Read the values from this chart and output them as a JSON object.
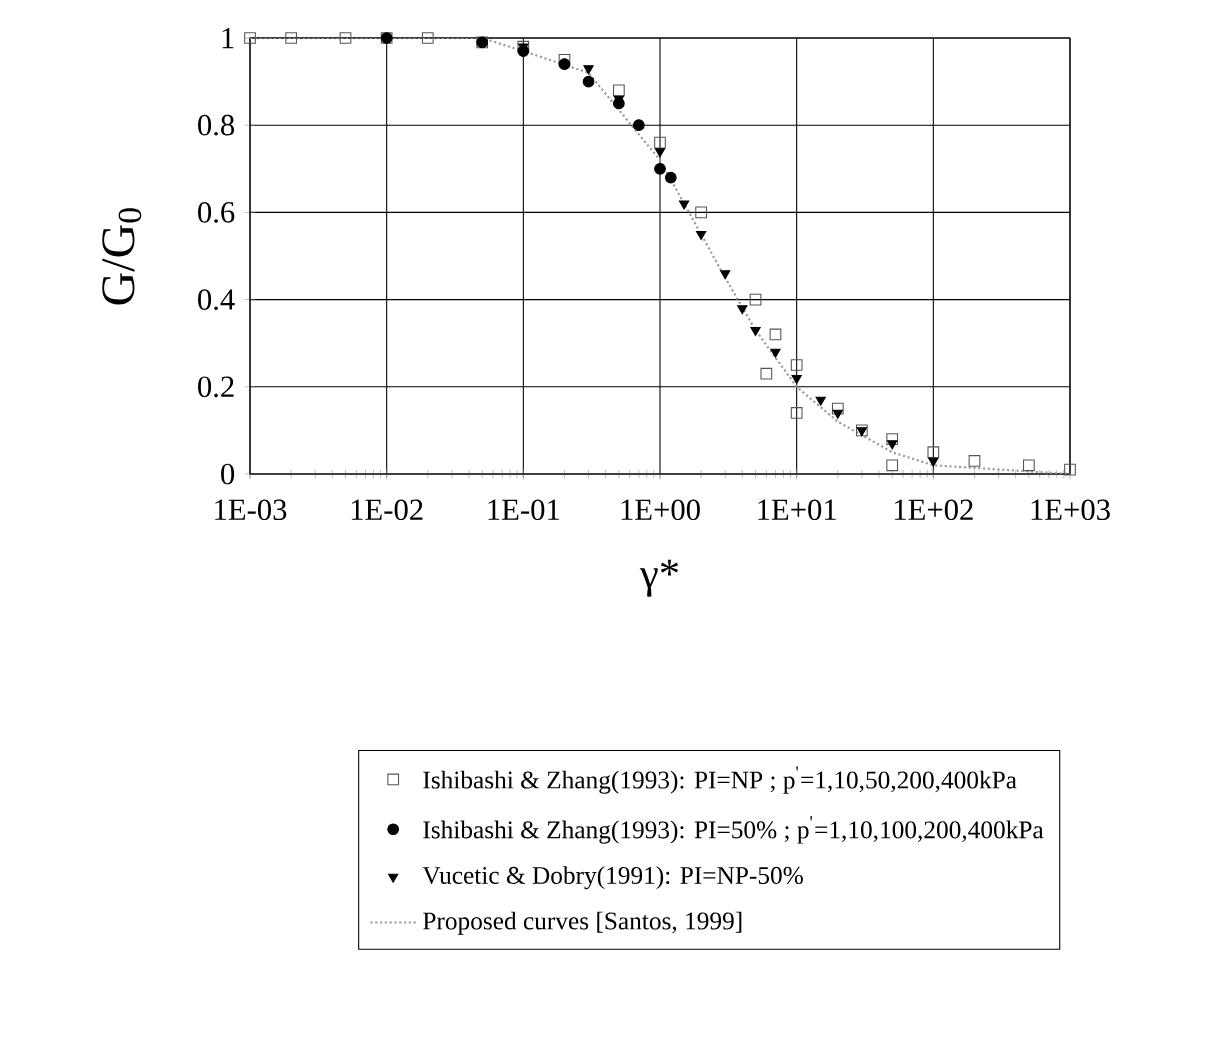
{
  "chart_data": {
    "type": "scatter",
    "xlabel": "γ*",
    "ylabel": "G/G$_{0}$",
    "log": "x",
    "grid": true,
    "legend": "bottom",
    "xlim": [
      0.001,
      1000
    ],
    "ylim": [
      0,
      1
    ],
    "xticks": [
      {
        "value": 0.001,
        "label": "1E-03"
      },
      {
        "value": 0.01,
        "label": "1E-02"
      },
      {
        "value": 0.1,
        "label": "1E-01"
      },
      {
        "value": 1,
        "label": "1E+00"
      },
      {
        "value": 10,
        "label": "1E+01"
      },
      {
        "value": 100,
        "label": "1E+02"
      },
      {
        "value": 1000,
        "label": "1E+03"
      }
    ],
    "yticks": [
      0,
      0.2,
      0.4,
      0.6,
      0.8,
      1
    ],
    "series": [
      {
        "name": "Ishibashi & Zhang(1993): PI=NP ; p$^{'}$=1,10,50,200,400kPa",
        "marker": "square",
        "color": "#555555",
        "x": [
          0.001,
          0.002,
          0.005,
          0.01,
          0.02,
          0.05,
          0.1,
          0.2,
          0.5,
          1,
          2,
          5,
          6,
          7,
          10,
          10,
          20,
          30,
          50,
          50,
          100,
          200,
          500,
          1000
        ],
        "values": [
          1,
          1,
          1,
          1,
          1,
          0.99,
          0.98,
          0.95,
          0.88,
          0.76,
          0.6,
          0.4,
          0.23,
          0.32,
          0.25,
          0.14,
          0.15,
          0.1,
          0.08,
          0.02,
          0.05,
          0.03,
          0.02,
          0.01
        ]
      },
      {
        "name": "Ishibashi & Zhang(1993): PI=50% ; p$^{'}$=1,10,100,200,400kPa",
        "marker": "circle",
        "color": "#000000",
        "x": [
          0.01,
          0.05,
          0.1,
          0.2,
          0.3,
          0.5,
          0.7,
          1,
          1.2
        ],
        "values": [
          1,
          0.99,
          0.97,
          0.94,
          0.9,
          0.85,
          0.8,
          0.7,
          0.68
        ]
      },
      {
        "name": "Vucetic & Dobry(1991): PI=NP-50%",
        "marker": "triangle",
        "color": "#000000",
        "x": [
          0.1,
          0.3,
          0.5,
          1,
          1.5,
          2,
          3,
          4,
          5,
          7,
          10,
          15,
          20,
          30,
          50,
          100
        ],
        "values": [
          0.98,
          0.93,
          0.86,
          0.74,
          0.62,
          0.55,
          0.46,
          0.38,
          0.33,
          0.28,
          0.22,
          0.17,
          0.14,
          0.1,
          0.07,
          0.03
        ]
      },
      {
        "name": "Proposed curves [Santos, 1999]",
        "type": "line",
        "marker": "none",
        "line_style": "dotted",
        "color": "#999999",
        "x": [
          0.001,
          0.01,
          0.05,
          0.1,
          0.3,
          1,
          2,
          3,
          5,
          10,
          20,
          50,
          100,
          1000
        ],
        "values": [
          1,
          1,
          1,
          0.97,
          0.92,
          0.72,
          0.55,
          0.45,
          0.33,
          0.2,
          0.12,
          0.05,
          0.02,
          0
        ]
      }
    ]
  }
}
